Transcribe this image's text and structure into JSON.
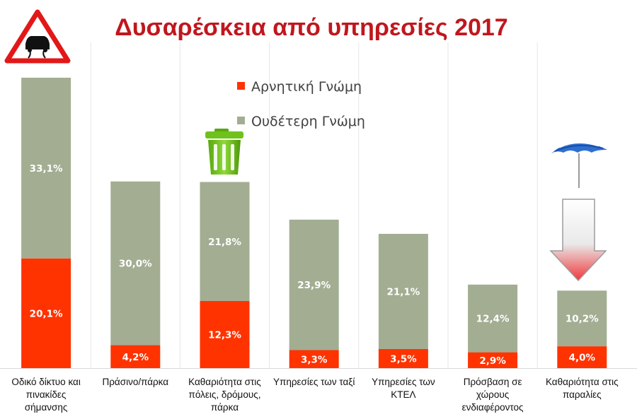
{
  "chart_data": {
    "type": "bar",
    "stacked": true,
    "title": "Δυσαρέσκεια από υπηρεσίες 2017",
    "categories": [
      [
        "Οδικό δίκτυο και",
        "πινακίδες",
        "σήμανσης"
      ],
      [
        "Πράσινο/πάρκα"
      ],
      [
        "Καθαριότητα στις",
        "πόλεις, δρόμους,",
        "πάρκα"
      ],
      [
        "Υπηρεσίες των ταξί"
      ],
      [
        "Υπηρεσίες των",
        "ΚΤΕΛ"
      ],
      [
        "Πρόσβαση σε",
        "χώρους",
        "ενδιαφέροντος"
      ],
      [
        "Καθαριότητα στις",
        "παραλίες"
      ]
    ],
    "series": [
      {
        "name": "Αρνητική Γνώμη",
        "color": "#ff3300",
        "values": [
          20.1,
          4.2,
          12.3,
          3.3,
          3.5,
          2.9,
          4.0
        ],
        "labels": [
          "20,1%",
          "4,2%",
          "12,3%",
          "3,3%",
          "3,5%",
          "2,9%",
          "4,0%"
        ]
      },
      {
        "name": "Ουδέτερη Γνώμη",
        "color": "#a3ad92",
        "values": [
          33.1,
          30.0,
          21.8,
          23.9,
          21.1,
          12.4,
          10.2
        ],
        "labels": [
          "33,1%",
          "30,0%",
          "21,8%",
          "23,9%",
          "21,1%",
          "12,4%",
          "10,2%"
        ]
      }
    ],
    "ylim": [
      0,
      53.2
    ],
    "grid": "vertical-separators",
    "legend": "top-center",
    "icons": [
      "slippery-road-sign-icon",
      "trash-bin-icon",
      "beach-umbrella-icon",
      "down-arrow-icon"
    ]
  }
}
